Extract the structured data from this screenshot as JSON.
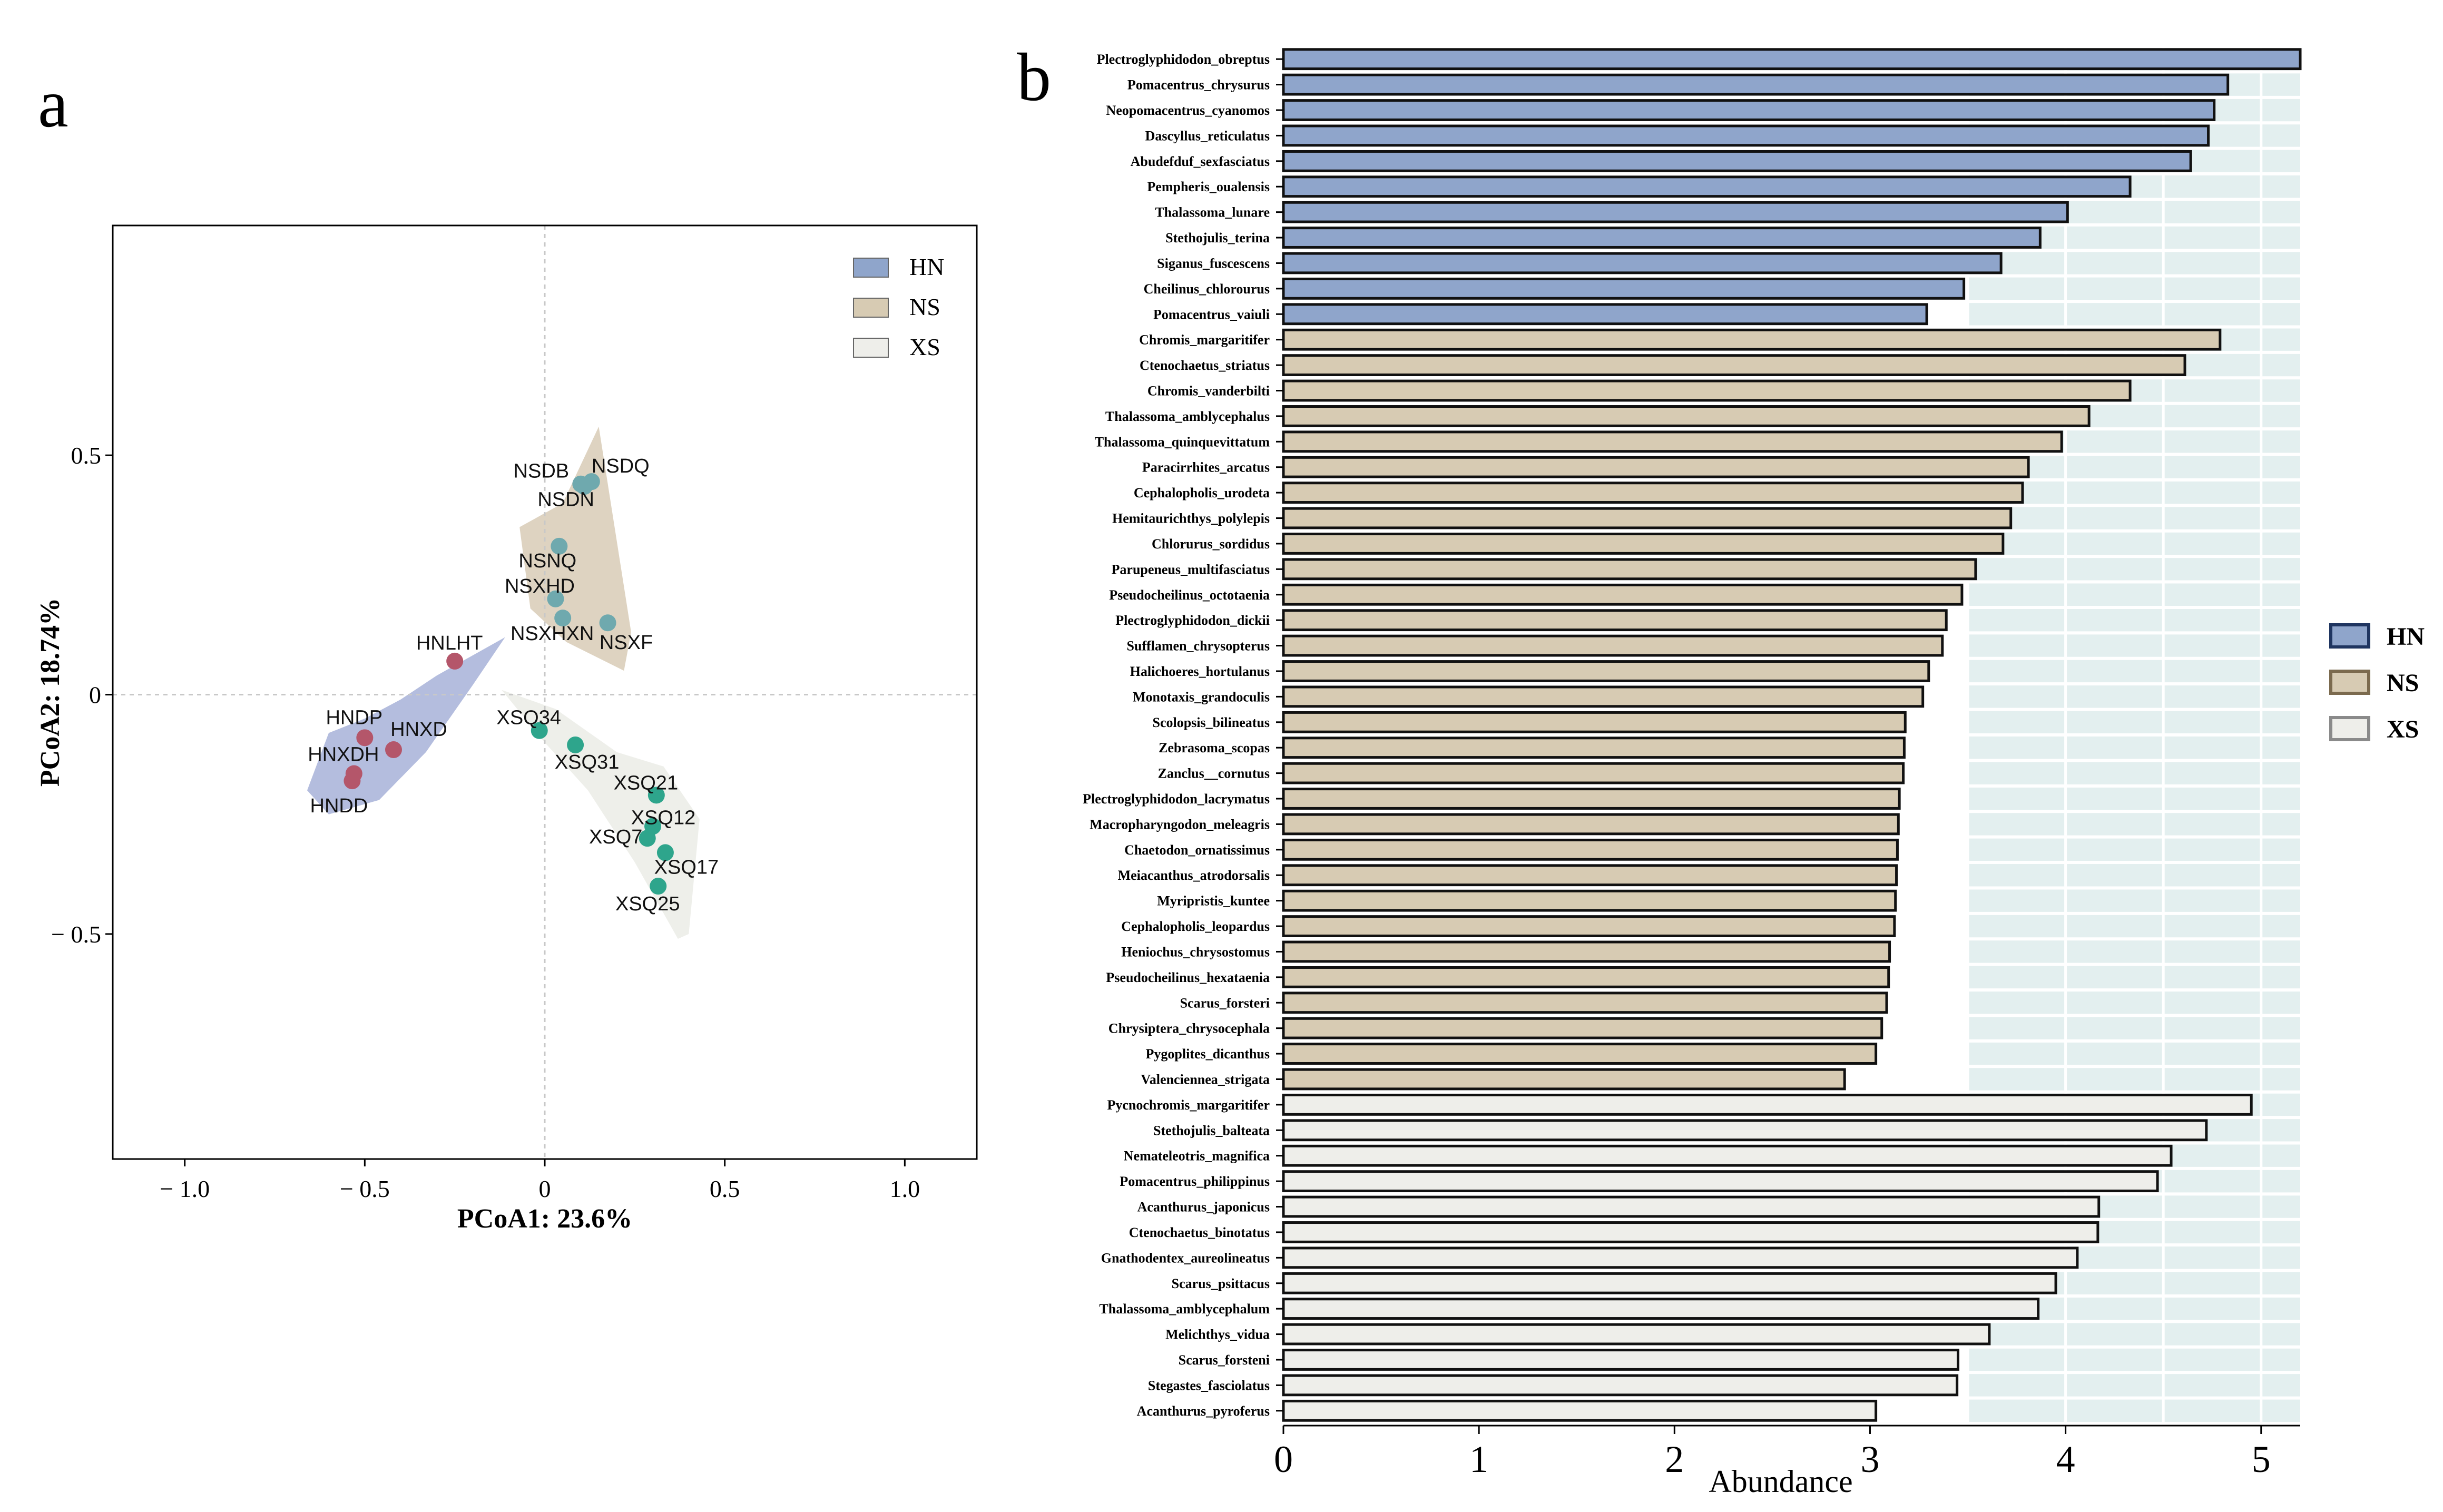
{
  "panels": {
    "a": "a",
    "b": "b"
  },
  "colors": {
    "HN": "#8fa5cb",
    "NS": "#d7cbb3",
    "XS": "#eeeeea",
    "HN_hull": "#a7b2d8",
    "NS_hull": "#d8cbb6",
    "XS_hull": "#ebece6",
    "HN_point": "#b4566a",
    "NS_point": "#6fa9ae",
    "XS_point": "#2ea58c",
    "HN_legend_border": "#1f3560",
    "NS_legend_border": "#7b6a4e",
    "XS_legend_border": "#8a8a8a",
    "bar_panel_bg": "#e3efef"
  },
  "chart_data": [
    {
      "type": "scatter",
      "panel": "a",
      "xlabel": "PCoA1: 23.6%",
      "ylabel": "PCoA2: 18.74%",
      "xlim": [
        -1.2,
        1.2
      ],
      "ylim": [
        -0.97,
        0.98
      ],
      "xticks": [
        -1.0,
        -0.5,
        0,
        0.5,
        1.0
      ],
      "xtick_labels": [
        "− 1.0",
        "− 0.5",
        "0",
        "0.5",
        "1.0"
      ],
      "yticks": [
        -0.5,
        0,
        0.5
      ],
      "ytick_labels": [
        "− 0.5",
        "0",
        "0.5"
      ],
      "legend": [
        {
          "group": "HN",
          "label": "HN"
        },
        {
          "group": "NS",
          "label": "NS"
        },
        {
          "group": "XS",
          "label": "XS"
        }
      ],
      "points": [
        {
          "label": "HNLHT",
          "group": "HN",
          "x": -0.25,
          "y": 0.07
        },
        {
          "label": "HNDP",
          "group": "HN",
          "x": -0.5,
          "y": -0.09
        },
        {
          "label": "HNXD",
          "group": "HN",
          "x": -0.42,
          "y": -0.115
        },
        {
          "label": "HNXDH",
          "group": "HN",
          "x": -0.53,
          "y": -0.165
        },
        {
          "label": "HNDD",
          "group": "HN",
          "x": -0.535,
          "y": -0.18
        },
        {
          "label": "NSDB",
          "group": "NS",
          "x": 0.1,
          "y": 0.44
        },
        {
          "label": "NSDQ",
          "group": "NS",
          "x": 0.13,
          "y": 0.445
        },
        {
          "label": "NSDN",
          "group": "NS",
          "x": 0.11,
          "y": 0.435
        },
        {
          "label": "NSNQ",
          "group": "NS",
          "x": 0.04,
          "y": 0.31
        },
        {
          "label": "NSXHD",
          "group": "NS",
          "x": 0.03,
          "y": 0.2
        },
        {
          "label": "NSXHXN",
          "group": "NS",
          "x": 0.05,
          "y": 0.16
        },
        {
          "label": "NSXF",
          "group": "NS",
          "x": 0.175,
          "y": 0.15
        },
        {
          "label": "XSQ34",
          "group": "XS",
          "x": -0.015,
          "y": -0.075
        },
        {
          "label": "XSQ31",
          "group": "XS",
          "x": 0.085,
          "y": -0.105
        },
        {
          "label": "XSQ21",
          "group": "XS",
          "x": 0.31,
          "y": -0.21
        },
        {
          "label": "XSQ12",
          "group": "XS",
          "x": 0.3,
          "y": -0.275
        },
        {
          "label": "XSQ7",
          "group": "XS",
          "x": 0.285,
          "y": -0.3
        },
        {
          "label": "XSQ17",
          "group": "XS",
          "x": 0.335,
          "y": -0.33
        },
        {
          "label": "XSQ25",
          "group": "XS",
          "x": 0.315,
          "y": -0.4
        }
      ]
    },
    {
      "type": "bar",
      "orientation": "horizontal",
      "panel": "b",
      "xlabel": "Abundance",
      "xlim": [
        0,
        5.2
      ],
      "xticks": [
        0,
        1,
        2,
        3,
        4,
        5
      ],
      "legend": [
        {
          "group": "HN",
          "label": "HN"
        },
        {
          "group": "NS",
          "label": "NS"
        },
        {
          "group": "XS",
          "label": "XS"
        }
      ],
      "bars": [
        {
          "label": "Plectroglyphidodon_obreptus",
          "group": "HN",
          "value": 5.2
        },
        {
          "label": "Pomacentrus_chrysurus",
          "group": "HN",
          "value": 4.83
        },
        {
          "label": "Neopomacentrus_cyanomos",
          "group": "HN",
          "value": 4.76
        },
        {
          "label": "Dascyllus_reticulatus",
          "group": "HN",
          "value": 4.73
        },
        {
          "label": "Abudefduf_sexfasciatus",
          "group": "HN",
          "value": 4.64
        },
        {
          "label": "Pempheris_oualensis",
          "group": "HN",
          "value": 4.33
        },
        {
          "label": "Thalassoma_lunare",
          "group": "HN",
          "value": 4.01
        },
        {
          "label": "Stethojulis_terina",
          "group": "HN",
          "value": 3.87
        },
        {
          "label": "Siganus_fuscescens",
          "group": "HN",
          "value": 3.67
        },
        {
          "label": "Cheilinus_chlorourus",
          "group": "HN",
          "value": 3.48
        },
        {
          "label": "Pomacentrus_vaiuli",
          "group": "HN",
          "value": 3.29
        },
        {
          "label": "Chromis_margaritifer",
          "group": "NS",
          "value": 4.79
        },
        {
          "label": "Ctenochaetus_striatus",
          "group": "NS",
          "value": 4.61
        },
        {
          "label": "Chromis_vanderbilti",
          "group": "NS",
          "value": 4.33
        },
        {
          "label": "Thalassoma_amblycephalus",
          "group": "NS",
          "value": 4.12
        },
        {
          "label": "Thalassoma_quinquevittatum",
          "group": "NS",
          "value": 3.98
        },
        {
          "label": "Paracirrhites_arcatus",
          "group": "NS",
          "value": 3.81
        },
        {
          "label": "Cephalopholis_urodeta",
          "group": "NS",
          "value": 3.78
        },
        {
          "label": "Hemitaurichthys_polylepis",
          "group": "NS",
          "value": 3.72
        },
        {
          "label": "Chlorurus_sordidus",
          "group": "NS",
          "value": 3.68
        },
        {
          "label": "Parupeneus_multifasciatus",
          "group": "NS",
          "value": 3.54
        },
        {
          "label": "Pseudocheilinus_octotaenia",
          "group": "NS",
          "value": 3.47
        },
        {
          "label": "Plectroglyphidodon_dickii",
          "group": "NS",
          "value": 3.39
        },
        {
          "label": "Sufflamen_chrysopterus",
          "group": "NS",
          "value": 3.37
        },
        {
          "label": "Halichoeres_hortulanus",
          "group": "NS",
          "value": 3.3
        },
        {
          "label": "Monotaxis_grandoculis",
          "group": "NS",
          "value": 3.27
        },
        {
          "label": "Scolopsis_bilineatus",
          "group": "NS",
          "value": 3.18
        },
        {
          "label": "Zebrasoma_scopas",
          "group": "NS",
          "value": 3.175
        },
        {
          "label": "Zanclus__cornutus",
          "group": "NS",
          "value": 3.17
        },
        {
          "label": "Plectroglyphidodon_lacrymatus",
          "group": "NS",
          "value": 3.15
        },
        {
          "label": "Macropharyngodon_meleagris",
          "group": "NS",
          "value": 3.145
        },
        {
          "label": "Chaetodon_ornatissimus",
          "group": "NS",
          "value": 3.14
        },
        {
          "label": "Meiacanthus_atrodorsalis",
          "group": "NS",
          "value": 3.135
        },
        {
          "label": "Myripristis_kuntee",
          "group": "NS",
          "value": 3.13
        },
        {
          "label": "Cephalopholis_leopardus",
          "group": "NS",
          "value": 3.125
        },
        {
          "label": "Heniochus_chrysostomus",
          "group": "NS",
          "value": 3.1
        },
        {
          "label": "Pseudocheilinus_hexataenia",
          "group": "NS",
          "value": 3.095
        },
        {
          "label": "Scarus_forsteri",
          "group": "NS",
          "value": 3.085
        },
        {
          "label": "Chrysiptera_chrysocephala",
          "group": "NS",
          "value": 3.06
        },
        {
          "label": "Pygoplites_dicanthus",
          "group": "NS",
          "value": 3.03
        },
        {
          "label": "Valenciennea_strigata",
          "group": "NS",
          "value": 2.87
        },
        {
          "label": "Pycnochromis_margaritifer",
          "group": "XS",
          "value": 4.95
        },
        {
          "label": "Stethojulis_balteata",
          "group": "XS",
          "value": 4.72
        },
        {
          "label": "Nemateleotris_magnifica",
          "group": "XS",
          "value": 4.54
        },
        {
          "label": "Pomacentrus_philippinus",
          "group": "XS",
          "value": 4.47
        },
        {
          "label": "Acanthurus_japonicus",
          "group": "XS",
          "value": 4.17
        },
        {
          "label": "Ctenochaetus_binotatus",
          "group": "XS",
          "value": 4.165
        },
        {
          "label": "Gnathodentex_aureolineatus",
          "group": "XS",
          "value": 4.06
        },
        {
          "label": "Scarus_psittacus",
          "group": "XS",
          "value": 3.95
        },
        {
          "label": "Thalassoma_amblycephalum",
          "group": "XS",
          "value": 3.86
        },
        {
          "label": "Melichthys_vidua",
          "group": "XS",
          "value": 3.61
        },
        {
          "label": "Scarus_forsteni",
          "group": "XS",
          "value": 3.45
        },
        {
          "label": "Stegastes_fasciolatus",
          "group": "XS",
          "value": 3.445
        },
        {
          "label": "Acanthurus_pyroferus",
          "group": "XS",
          "value": 3.03
        }
      ]
    }
  ]
}
